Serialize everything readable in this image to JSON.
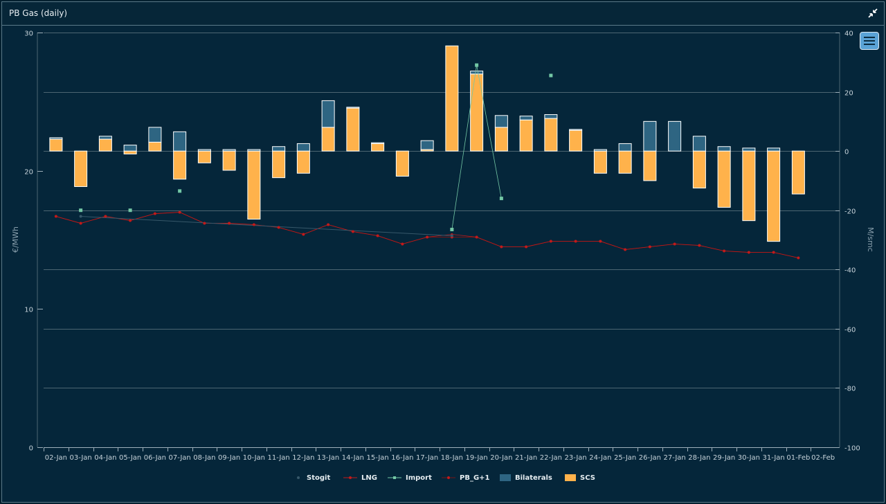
{
  "panel": {
    "title": "PB Gas (daily)"
  },
  "icons": {
    "collapse": "collapse-icon",
    "menu": "menu-icon"
  },
  "colors": {
    "bilaterals": "#2e6582",
    "scs": "#ffb24b",
    "lng": "#c21a1a",
    "pbg": "#7a1414",
    "import": "#73c7a5",
    "stogit": "#37586a",
    "grid": "#4d6672",
    "text": "#c7d3da"
  },
  "chart_data": {
    "type": "bar",
    "title": "",
    "y_left": {
      "label": "€/MWh",
      "min": 0,
      "max": 30,
      "ticks": [
        0,
        10,
        20,
        30
      ]
    },
    "y_right": {
      "label": "M/smc",
      "min": -100,
      "max": 40,
      "ticks": [
        -100,
        -80,
        -60,
        -40,
        -20,
        0,
        20,
        40
      ]
    },
    "categories": [
      "02-Jan",
      "03-Jan",
      "04-Jan",
      "05-Jan",
      "06-Jan",
      "07-Jan",
      "08-Jan",
      "09-Jan",
      "10-Jan",
      "11-Jan",
      "12-Jan",
      "13-Jan",
      "14-Jan",
      "15-Jan",
      "16-Jan",
      "17-Jan",
      "18-Jan",
      "19-Jan",
      "20-Jan",
      "21-Jan",
      "22-Jan",
      "23-Jan",
      "24-Jan",
      "25-Jan",
      "26-Jan",
      "27-Jan",
      "28-Jan",
      "29-Jan",
      "30-Jan",
      "31-Jan",
      "01-Feb",
      "02-Feb"
    ],
    "series": [
      {
        "name": "Stogit",
        "type": "line",
        "axis": "left",
        "values": [
          null,
          16.7,
          null,
          null,
          null,
          null,
          null,
          null,
          null,
          null,
          null,
          null,
          null,
          null,
          null,
          null,
          15.3,
          null,
          null,
          null,
          null,
          null,
          null,
          null,
          null,
          null,
          null,
          null,
          null,
          null,
          null,
          null
        ]
      },
      {
        "name": "LNG",
        "type": "line",
        "axis": "left",
        "values": [
          16.7,
          16.2,
          16.7,
          16.4,
          16.9,
          17.0,
          16.2,
          16.2,
          16.1,
          15.9,
          15.4,
          16.1,
          15.6,
          15.3,
          14.7,
          15.2,
          15.4,
          15.2,
          14.5,
          14.5,
          14.9,
          14.9,
          14.9,
          14.3,
          14.5,
          14.7,
          14.6,
          14.2,
          14.1,
          14.1,
          13.7,
          null
        ]
      },
      {
        "name": "Import",
        "type": "line",
        "axis": "right",
        "values": [
          null,
          -20,
          null,
          -20,
          null,
          -13.5,
          null,
          null,
          null,
          null,
          null,
          null,
          null,
          null,
          null,
          null,
          -26.5,
          29,
          -16,
          null,
          25.5,
          null,
          null,
          null,
          null,
          null,
          null,
          null,
          null,
          null,
          null,
          null
        ]
      },
      {
        "name": "PB_G+1",
        "type": "line",
        "axis": "left",
        "values": [
          16.7,
          16.2,
          16.7,
          16.4,
          16.9,
          17.0,
          16.2,
          16.2,
          16.1,
          15.9,
          15.4,
          16.1,
          15.6,
          15.3,
          14.7,
          15.2,
          15.2,
          15.2,
          14.5,
          14.5,
          14.9,
          14.9,
          14.9,
          14.3,
          14.5,
          14.7,
          14.6,
          14.2,
          14.1,
          14.1,
          13.7,
          null
        ]
      },
      {
        "name": "Bilaterals",
        "type": "bar",
        "axis": "right",
        "values": [
          0.5,
          0,
          1,
          2,
          5,
          6.5,
          0.5,
          0.5,
          0.5,
          1.5,
          2.5,
          9,
          0.3,
          0.3,
          0,
          3,
          0,
          1,
          4,
          1.3,
          1.3,
          0.3,
          0.5,
          2.5,
          10,
          10,
          5,
          1.5,
          1,
          1,
          0,
          null
        ]
      },
      {
        "name": "SCS",
        "type": "bar",
        "axis": "right",
        "values": [
          4,
          -12,
          4,
          -1,
          3,
          -9.5,
          -4,
          -6.5,
          -23,
          -9,
          -7.5,
          8,
          14.5,
          2.5,
          -8.5,
          0.5,
          35.5,
          26,
          8,
          10.5,
          11,
          7,
          -7.5,
          -7.5,
          -10,
          0,
          -12.5,
          -19,
          -23.5,
          -30.5,
          -14.5,
          null
        ]
      }
    ],
    "legend": {
      "placement": "bottom-center",
      "entries": [
        "Stogit",
        "LNG",
        "Import",
        "PB_G+1",
        "Bilaterals",
        "SCS"
      ]
    },
    "grid": true
  }
}
